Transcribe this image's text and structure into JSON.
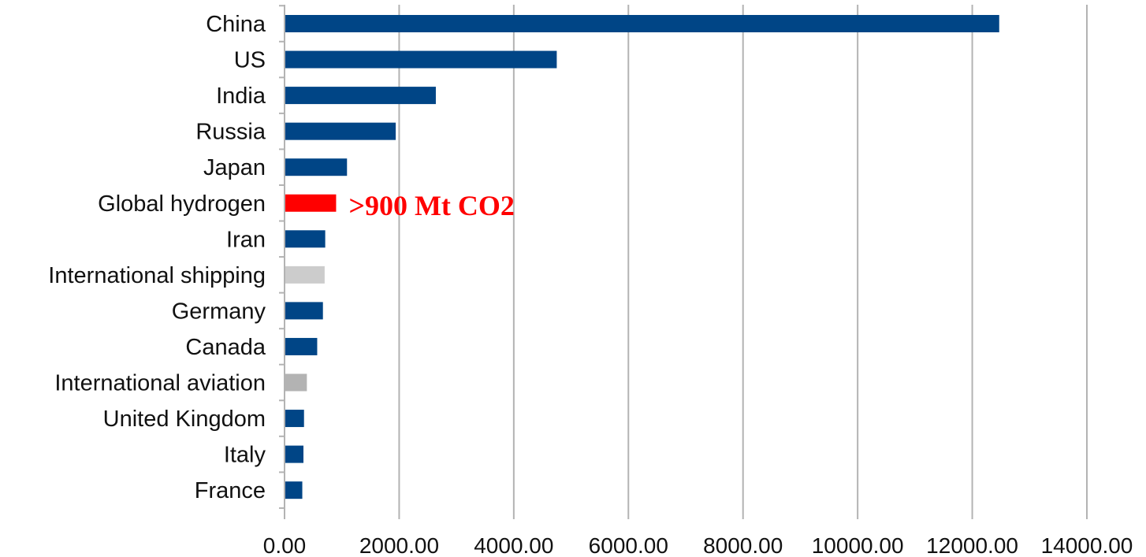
{
  "chart_data": {
    "type": "bar",
    "orientation": "horizontal",
    "title": "",
    "xlabel": "",
    "ylabel": "",
    "xlim": [
      0,
      14000
    ],
    "x_ticks": [
      {
        "value": 0,
        "label": "0.00"
      },
      {
        "value": 2000,
        "label": "2000.00"
      },
      {
        "value": 4000,
        "label": "4000.00"
      },
      {
        "value": 6000,
        "label": "6000.00"
      },
      {
        "value": 8000,
        "label": "8000.00"
      },
      {
        "value": 10000,
        "label": "10000.00"
      },
      {
        "value": 12000,
        "label": "12000.00"
      },
      {
        "value": 14000,
        "label": "14000.00"
      }
    ],
    "grid": "vertical",
    "legend": "none",
    "categories": [
      "China",
      "US",
      "India",
      "Russia",
      "Japan",
      "Global hydrogen",
      "Iran",
      "International shipping",
      "Germany",
      "Canada",
      "International aviation",
      "United Kingdom",
      "Italy",
      "France"
    ],
    "values": [
      12470,
      4750,
      2640,
      1940,
      1090,
      900,
      710,
      700,
      670,
      570,
      390,
      340,
      330,
      310
    ],
    "bar_colors": [
      "#004586",
      "#004586",
      "#004586",
      "#004586",
      "#004586",
      "#ff0000",
      "#004586",
      "#cccccc",
      "#004586",
      "#004586",
      "#b3b3b3",
      "#004586",
      "#004586",
      "#004586"
    ],
    "annotations": [
      {
        "text": ">900 Mt CO2",
        "category": "Global hydrogen",
        "color": "#ff0000"
      }
    ]
  }
}
